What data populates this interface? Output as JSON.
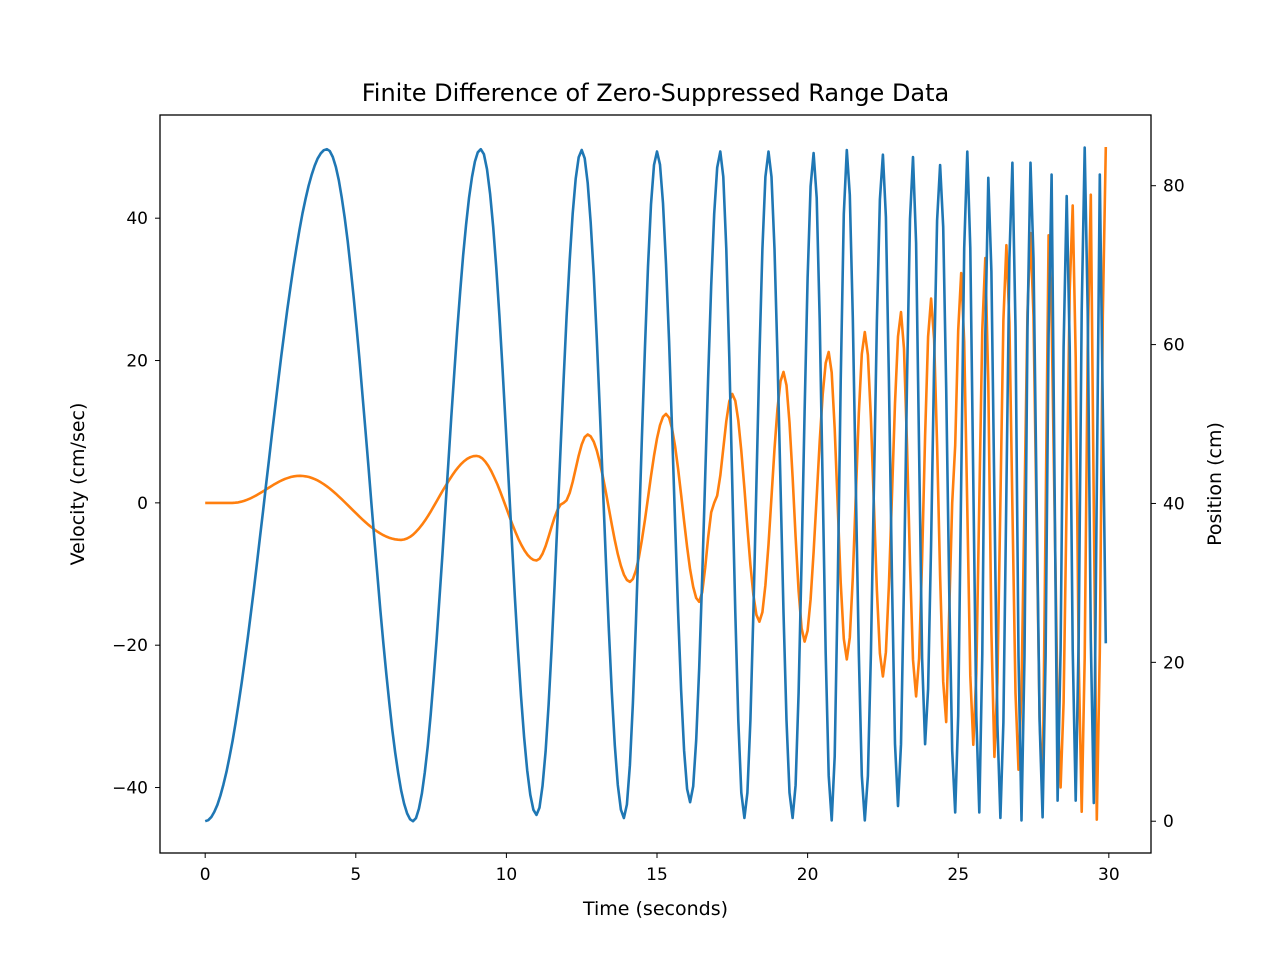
{
  "chart_data": {
    "type": "line",
    "title": "Finite Difference of Zero-Suppressed Range Data",
    "xlabel": "Time (seconds)",
    "ylabel_left": "Velocity (cm/sec)",
    "ylabel_right": "Position (cm)",
    "xlim": [
      -1.5,
      31.4
    ],
    "ylim_left": [
      -49.2,
      54.5
    ],
    "ylim_right": [
      -4.0,
      88.9
    ],
    "x_ticks": [
      0,
      5,
      10,
      15,
      20,
      25,
      30
    ],
    "x_tick_labels": [
      "0",
      "5",
      "10",
      "15",
      "20",
      "25",
      "30"
    ],
    "y_left_ticks": [
      -40,
      -20,
      0,
      20,
      40
    ],
    "y_left_tick_labels": [
      "−40",
      "−20",
      "0",
      "20",
      "40"
    ],
    "y_right_ticks": [
      0,
      20,
      40,
      60,
      80
    ],
    "y_right_tick_labels": [
      "0",
      "20",
      "40",
      "60",
      "80"
    ],
    "grid": false,
    "colors": {
      "velocity": "#ff7f0e",
      "position": "#1f77b4",
      "velocity_label": "#ff7f0e"
    },
    "series": [
      {
        "name": "Position",
        "axis": "right",
        "color": "#1f77b4",
        "note": "extrema points (t, cm)",
        "points": [
          [
            0,
            0
          ],
          [
            4.04,
            84.6
          ],
          [
            6.9,
            0
          ],
          [
            9.15,
            84.6
          ],
          [
            11.0,
            0.8
          ],
          [
            12.5,
            84.5
          ],
          [
            13.9,
            0.4
          ],
          [
            15.0,
            84.3
          ],
          [
            16.1,
            2.4
          ],
          [
            17.1,
            84.3
          ],
          [
            17.9,
            0.4
          ],
          [
            18.7,
            84.3
          ],
          [
            19.5,
            0.4
          ],
          [
            20.2,
            84.1
          ],
          [
            20.8,
            0.1
          ],
          [
            21.3,
            84.5
          ],
          [
            21.9,
            0.1
          ],
          [
            22.5,
            83.9
          ],
          [
            23.0,
            1.9
          ],
          [
            23.5,
            83.6
          ],
          [
            23.9,
            9.7
          ],
          [
            24.4,
            82.6
          ],
          [
            24.9,
            1.1
          ],
          [
            25.3,
            84.3
          ],
          [
            25.7,
            1.1
          ],
          [
            26.0,
            81
          ],
          [
            26.4,
            0.4
          ],
          [
            26.8,
            82.9
          ],
          [
            27.1,
            0.1
          ],
          [
            27.4,
            82.9
          ],
          [
            27.8,
            0.5
          ],
          [
            28.1,
            81.4
          ],
          [
            28.3,
            2.6
          ],
          [
            28.6,
            78.7
          ],
          [
            28.9,
            2.6
          ],
          [
            29.2,
            84.8
          ],
          [
            29.5,
            2.3
          ],
          [
            29.7,
            81.4
          ],
          [
            29.9,
            22.4
          ]
        ]
      },
      {
        "name": "Velocity",
        "axis": "left",
        "color": "#ff7f0e",
        "note": "extrema points (t, cm/sec)",
        "points": [
          [
            0,
            0
          ],
          [
            0.9,
            0
          ],
          [
            3.15,
            3.8
          ],
          [
            6.5,
            -5.2
          ],
          [
            9.0,
            6.6
          ],
          [
            11.0,
            -8.1
          ],
          [
            11.9,
            0
          ],
          [
            12.7,
            9.6
          ],
          [
            14.1,
            -11.1
          ],
          [
            15.3,
            12.5
          ],
          [
            16.4,
            -13.9
          ],
          [
            16.9,
            0
          ],
          [
            17.5,
            15.3
          ],
          [
            18.4,
            -16.7
          ],
          [
            19.2,
            18.4
          ],
          [
            19.9,
            -19.5
          ],
          [
            20.7,
            21.2
          ],
          [
            21.3,
            -22
          ],
          [
            21.9,
            24
          ],
          [
            22.5,
            -24.4
          ],
          [
            23.1,
            26.8
          ],
          [
            23.6,
            -27.2
          ],
          [
            24.1,
            28.7
          ],
          [
            24.6,
            -30.8
          ],
          [
            24.8,
            0
          ],
          [
            25.1,
            32.3
          ],
          [
            25.5,
            -34
          ],
          [
            25.9,
            34.4
          ],
          [
            26.2,
            -35.7
          ],
          [
            26.6,
            36.2
          ],
          [
            27.0,
            -37.5
          ],
          [
            27.4,
            37.9
          ],
          [
            27.8,
            -41.7
          ],
          [
            28.0,
            37.6
          ],
          [
            28.4,
            -40
          ],
          [
            28.8,
            41.8
          ],
          [
            29.1,
            -43.4
          ],
          [
            29.4,
            43.3
          ],
          [
            29.6,
            -44.5
          ],
          [
            29.9,
            50
          ]
        ]
      }
    ]
  }
}
